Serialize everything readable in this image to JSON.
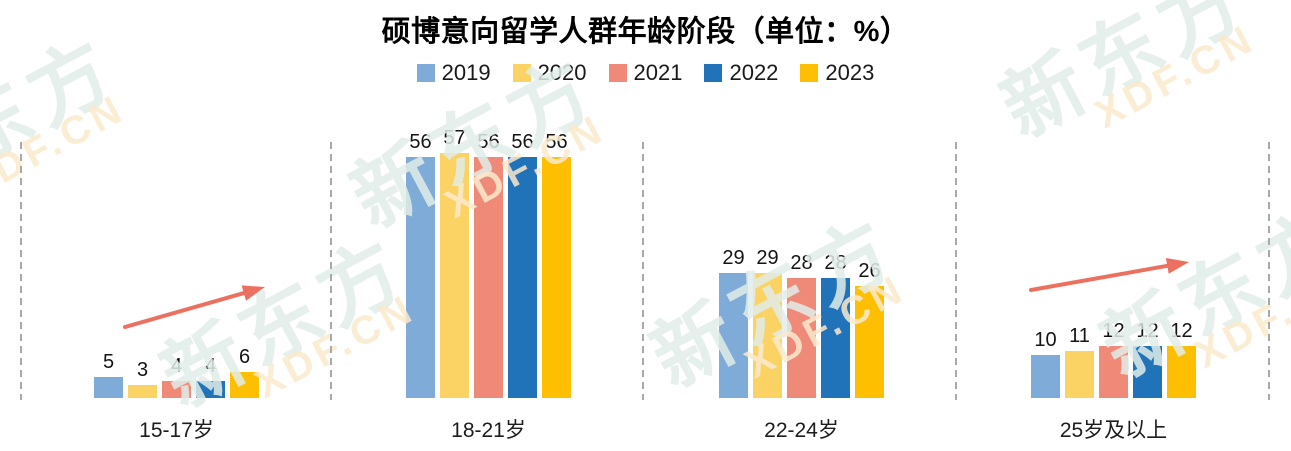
{
  "chart_data": {
    "type": "bar",
    "title": "硕博意向留学人群年龄阶段（单位：%）",
    "unit": "%",
    "categories": [
      "15-17岁",
      "18-21岁",
      "22-24岁",
      "25岁及以上"
    ],
    "series": [
      {
        "name": "2019",
        "color": "#7EABD8",
        "values": [
          5,
          56,
          29,
          10
        ]
      },
      {
        "name": "2020",
        "color": "#FBD364",
        "values": [
          3,
          57,
          29,
          11
        ]
      },
      {
        "name": "2021",
        "color": "#F08A78",
        "values": [
          4,
          56,
          28,
          12
        ]
      },
      {
        "name": "2022",
        "color": "#2173B9",
        "values": [
          4,
          56,
          28,
          12
        ]
      },
      {
        "name": "2023",
        "color": "#FDBF00",
        "values": [
          6,
          56,
          26,
          12
        ]
      }
    ],
    "value_labels": true,
    "legend_position": "top",
    "ylim": [
      0,
      60
    ],
    "grid": false,
    "annotations": [
      {
        "type": "trend-arrow",
        "group": "15-17岁",
        "direction": "up-right",
        "color": "#EC7060"
      },
      {
        "type": "trend-arrow",
        "group": "25岁及以上",
        "direction": "up-right",
        "color": "#EC7060"
      }
    ]
  },
  "watermark": {
    "cjk": "新东方",
    "latin": "XDF.CN"
  },
  "style": {
    "separator_color": "#A9A9A9",
    "arrow_color": "#EC7060",
    "text_color": "#141414",
    "background": "#FFFFFF"
  }
}
